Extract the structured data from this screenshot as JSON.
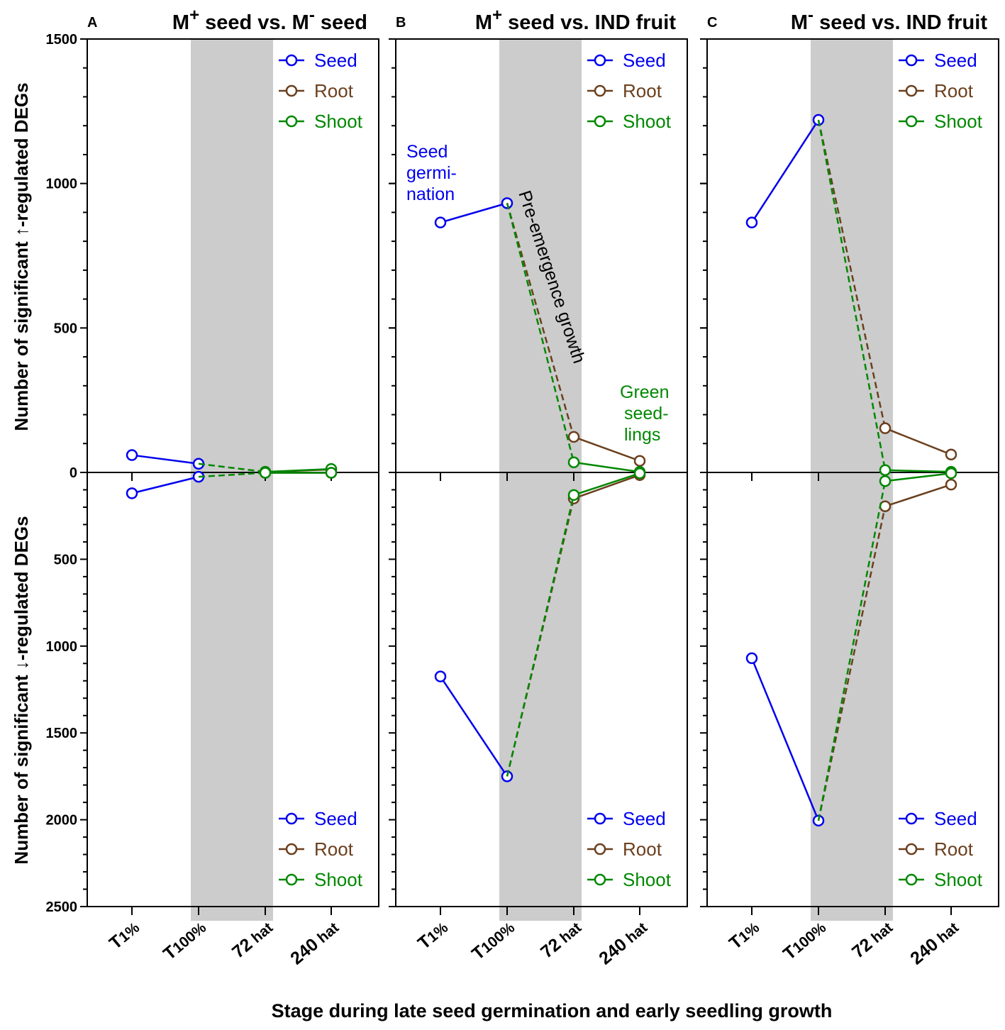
{
  "figure": {
    "ylabel_up": "Number of significant ↑-regulated DEGs",
    "ylabel_down": "Number of significant ↓-regulated DEGs",
    "xlabel": "Stage during late seed germination and early seedling growth",
    "series_names": [
      "Seed",
      "Root",
      "Shoot"
    ],
    "colors": {
      "Seed": "#0000ee",
      "Root": "#6b3f1d",
      "Shoot": "#008800"
    }
  },
  "chart_data": [
    {
      "type": "line",
      "label": "A",
      "title_main": "M",
      "title_sup": "+",
      "title_mid": " seed vs. M",
      "title_sup2": "-",
      "title_end": " seed",
      "x": [
        "T1%",
        "T100%",
        "72 hat",
        "240 hat"
      ],
      "x_ticklabels": [
        {
          "main": "T",
          "sub": "1%"
        },
        {
          "main": "T",
          "sub": "100%"
        },
        {
          "main": "72",
          "sub": " hat"
        },
        {
          "main": "240",
          "sub": " hat"
        }
      ],
      "y_up_ticks": [
        0,
        500,
        1000,
        1500
      ],
      "y_down_ticks": [
        500,
        1000,
        1500,
        2000,
        2500
      ],
      "ylim_up": [
        0,
        1500
      ],
      "ylim_down": [
        0,
        2500
      ],
      "shaded_region": [
        "T100%",
        "72 hat"
      ],
      "up": {
        "Seed": [
          60,
          30
        ],
        "Root": [
          null,
          null,
          2,
          10
        ],
        "Shoot": [
          null,
          30,
          2,
          12
        ]
      },
      "down": {
        "Seed": [
          120,
          25
        ],
        "Root": [
          null,
          null,
          2,
          2
        ],
        "Shoot": [
          null,
          25,
          2,
          2
        ]
      },
      "annotations": []
    },
    {
      "type": "line",
      "label": "B",
      "title_main": "M",
      "title_sup": "+",
      "title_mid": " seed vs. IND fruit",
      "title_sup2": "",
      "title_end": "",
      "x": [
        "T1%",
        "T100%",
        "72 hat",
        "240 hat"
      ],
      "x_ticklabels": [
        {
          "main": "T",
          "sub": "1%"
        },
        {
          "main": "T",
          "sub": "100%"
        },
        {
          "main": "72",
          "sub": " hat"
        },
        {
          "main": "240",
          "sub": " hat"
        }
      ],
      "ylim_up": [
        0,
        1500
      ],
      "ylim_down": [
        0,
        2500
      ],
      "shaded_region": [
        "T100%",
        "72 hat"
      ],
      "up": {
        "Seed": [
          865,
          932
        ],
        "Root": [
          null,
          932,
          123,
          40
        ],
        "Shoot": [
          null,
          932,
          35,
          2
        ]
      },
      "down": {
        "Seed": [
          1175,
          1750
        ],
        "Root": [
          null,
          1750,
          150,
          15
        ],
        "Shoot": [
          null,
          1750,
          130,
          5
        ]
      },
      "annotations": [
        {
          "text": [
            "Seed",
            "germi-",
            "nation"
          ],
          "color": "Seed"
        },
        {
          "text": [
            "Pre-emergence growth"
          ],
          "color": "black"
        },
        {
          "text": [
            "Green",
            "seed-",
            "lings"
          ],
          "color": "Shoot"
        }
      ]
    },
    {
      "type": "line",
      "label": "C",
      "title_main": "M",
      "title_sup": "-",
      "title_mid": " seed vs. IND fruit",
      "title_sup2": "",
      "title_end": "",
      "x": [
        "T1%",
        "T100%",
        "72 hat",
        "240 hat"
      ],
      "x_ticklabels": [
        {
          "main": "T",
          "sub": "1%"
        },
        {
          "main": "T",
          "sub": "100%"
        },
        {
          "main": "72",
          "sub": " hat"
        },
        {
          "main": "240",
          "sub": " hat"
        }
      ],
      "ylim_up": [
        0,
        1500
      ],
      "ylim_down": [
        0,
        2500
      ],
      "shaded_region": [
        "T100%",
        "72 hat"
      ],
      "up": {
        "Seed": [
          865,
          1220
        ],
        "Root": [
          null,
          1220,
          153,
          62
        ],
        "Shoot": [
          null,
          1220,
          8,
          2
        ]
      },
      "down": {
        "Seed": [
          1070,
          2005
        ],
        "Root": [
          null,
          2005,
          195,
          70
        ],
        "Shoot": [
          null,
          2005,
          50,
          5
        ]
      },
      "annotations": []
    }
  ]
}
